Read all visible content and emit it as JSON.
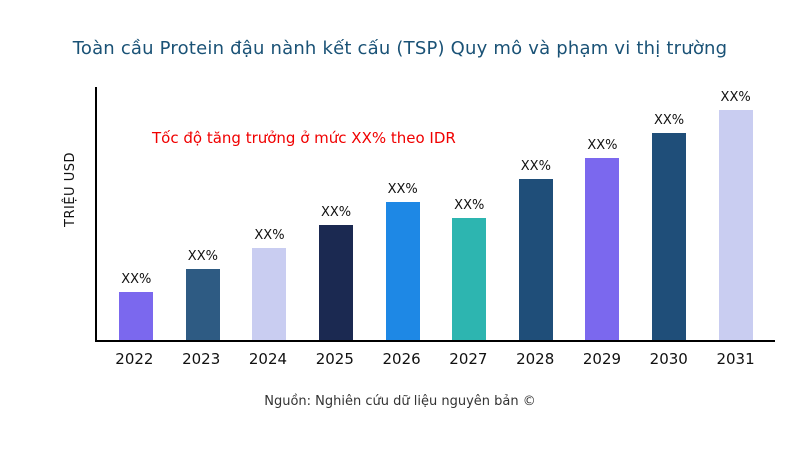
{
  "title": "Toàn cầu Protein đậu nành kết cấu (TSP) Quy mô và phạm vi thị trường",
  "source_note": "Nguồn: Nghiên cứu dữ liệu nguyên bản ©",
  "chart_data": {
    "type": "bar",
    "title": "Toàn cầu Protein đậu nành kết cấu (TSP) Quy mô và phạm vi thị trường",
    "xlabel": "",
    "ylabel": "TRIỆU USD",
    "annotation": "Tốc độ tăng trưởng ở mức XX% theo IDR",
    "annotation_color": "#f00000",
    "categories": [
      "2022",
      "2023",
      "2024",
      "2025",
      "2026",
      "2027",
      "2028",
      "2029",
      "2030",
      "2031"
    ],
    "values": [
      21,
      31,
      40,
      50,
      60,
      53,
      70,
      79,
      90,
      100
    ],
    "values_note": "relative heights, percent of tallest bar; numeric axis values not shown in chart",
    "bar_labels": [
      "XX%",
      "XX%",
      "XX%",
      "XX%",
      "XX%",
      "XX%",
      "XX%",
      "XX%",
      "XX%",
      "XX%"
    ],
    "colors": [
      "#7b68ee",
      "#2e5b83",
      "#c9cdf1",
      "#1b2951",
      "#1e88e5",
      "#2db5b0",
      "#1f4e79",
      "#7b68ee",
      "#1f4e79",
      "#c9cdf1"
    ],
    "grid": false,
    "legend": "none",
    "axis_color": "#000000",
    "title_color": "#1a5276"
  }
}
